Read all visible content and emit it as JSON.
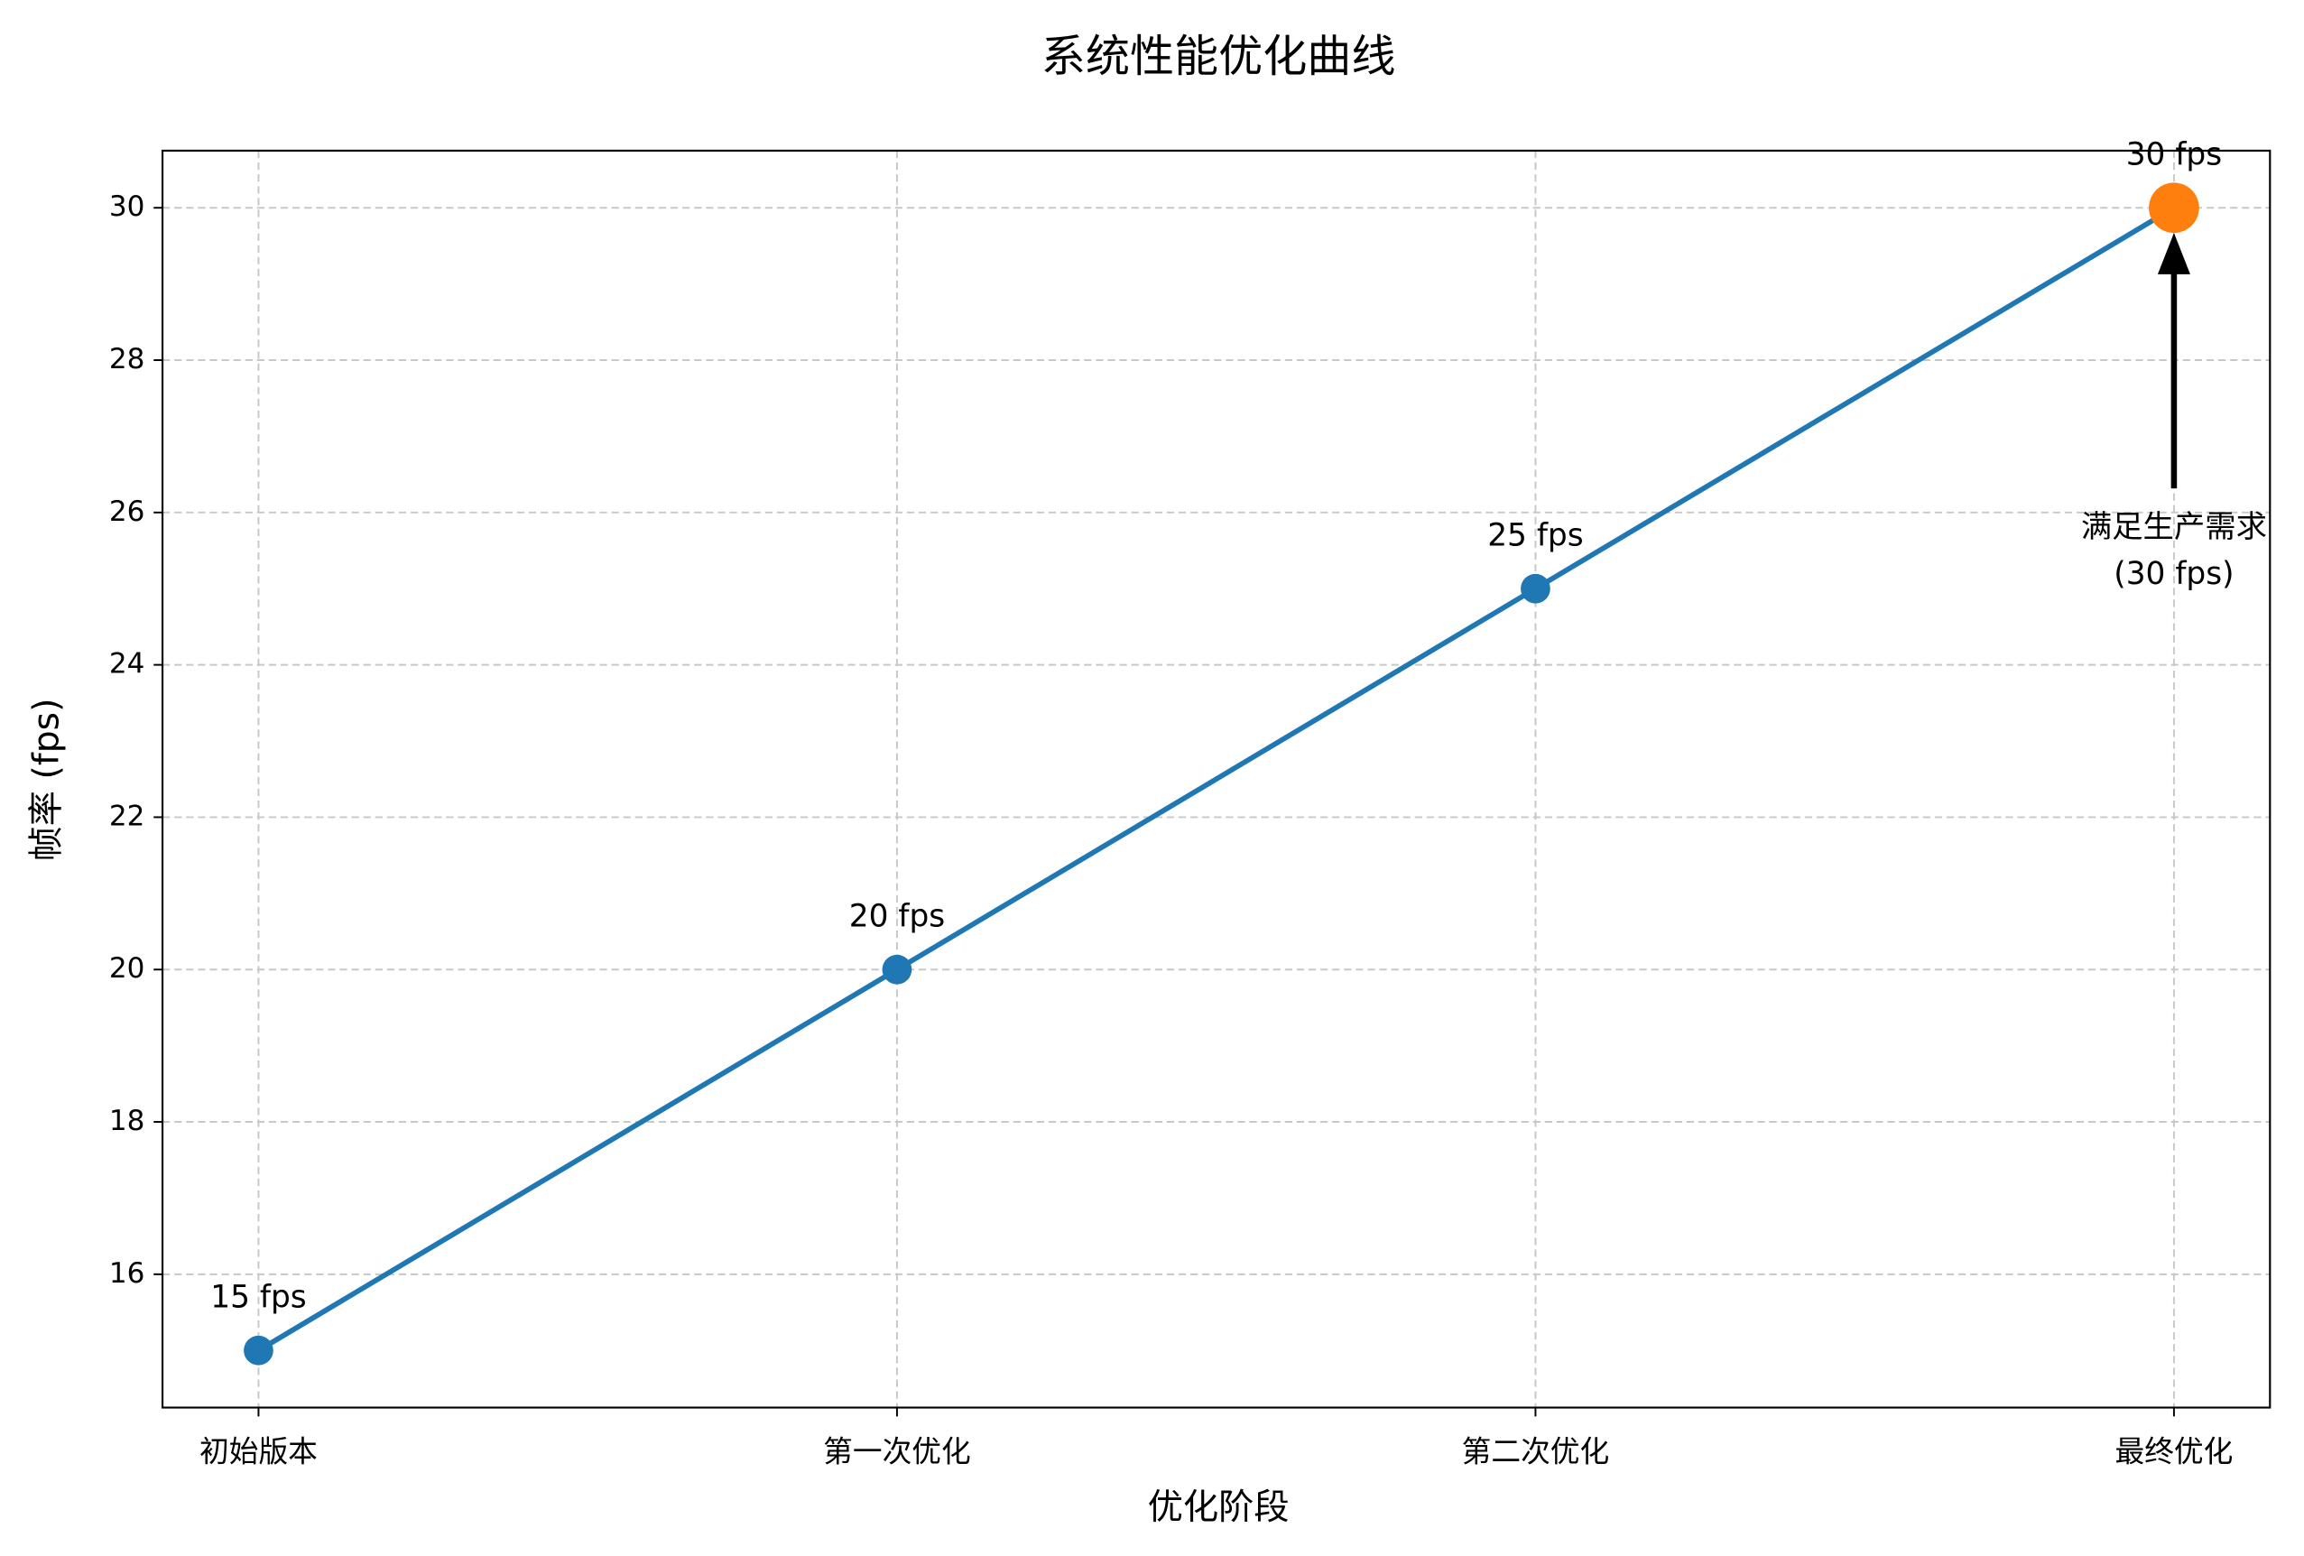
{
  "chart_data": {
    "type": "line",
    "title": "系统性能优化曲线",
    "x_label": "优化阶段",
    "y_label": "帧率 (fps)",
    "categories": [
      "初始版本",
      "第一次优化",
      "第二次优化",
      "最终优化"
    ],
    "series": [
      {
        "color": "#1f77b4",
        "values": [
          15,
          20,
          25,
          30
        ],
        "value_labels": [
          "15 fps",
          "20 fps",
          "25 fps",
          "30 fps"
        ],
        "marker_colors": [
          "#1f77b4",
          "#1f77b4",
          "#1f77b4",
          "#ff7f0e"
        ]
      }
    ],
    "annotation": {
      "lines": [
        "满足生产需求",
        "(30 fps)"
      ]
    },
    "ylim": [
      14.25,
      30.75
    ],
    "yticks": [
      16,
      18,
      20,
      22,
      24,
      26,
      28,
      30
    ],
    "grid": true
  }
}
